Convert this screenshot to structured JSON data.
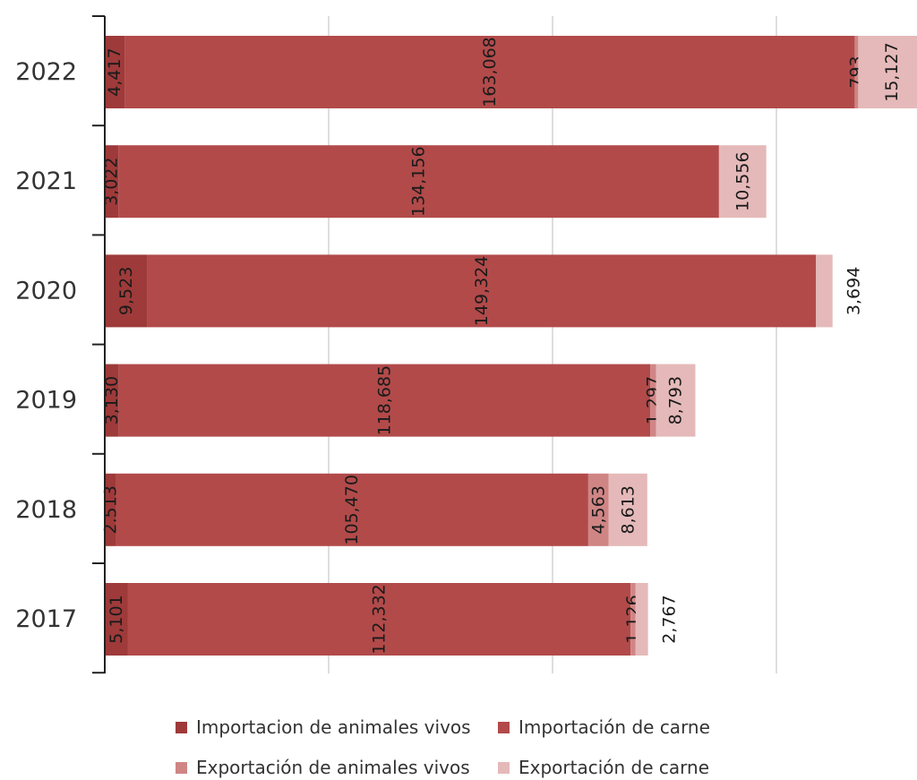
{
  "chart_data": {
    "type": "bar",
    "orientation": "horizontal",
    "stacked": true,
    "title": "",
    "xlabel": "",
    "ylabel": "",
    "categories": [
      "2022",
      "2021",
      "2020",
      "2019",
      "2018",
      "2017"
    ],
    "xlim": [
      0,
      180000
    ],
    "grid": true,
    "legend_position": "bottom",
    "series": [
      {
        "name": "Importacion de animales vivos",
        "color": "#9e3a3a",
        "values": [
          4417,
          3022,
          9523,
          3130,
          2513,
          5101
        ],
        "labels": [
          "4,417",
          "3,022",
          "9,523",
          "3,130",
          "2,513",
          "5,101"
        ]
      },
      {
        "name": "Importación de carne",
        "color": "#b24a4a",
        "values": [
          163068,
          134156,
          149324,
          118685,
          105470,
          112332
        ],
        "labels": [
          "163,068",
          "134,156",
          "149,324",
          "118,685",
          "105,470",
          "112,332"
        ]
      },
      {
        "name": "Exportación de animales vivos",
        "color": "#d08585",
        "values": [
          793,
          0,
          0,
          1297,
          4563,
          1126
        ],
        "labels": [
          "793",
          "",
          "",
          "1,297",
          "4,563",
          "1,126"
        ]
      },
      {
        "name": "Exportación de carne",
        "color": "#e5b9b9",
        "values": [
          15127,
          10556,
          3694,
          8793,
          8613,
          2767
        ],
        "labels": [
          "15,127",
          "10,556",
          "3,694",
          "8,793",
          "8,613",
          "2,767"
        ]
      }
    ]
  }
}
